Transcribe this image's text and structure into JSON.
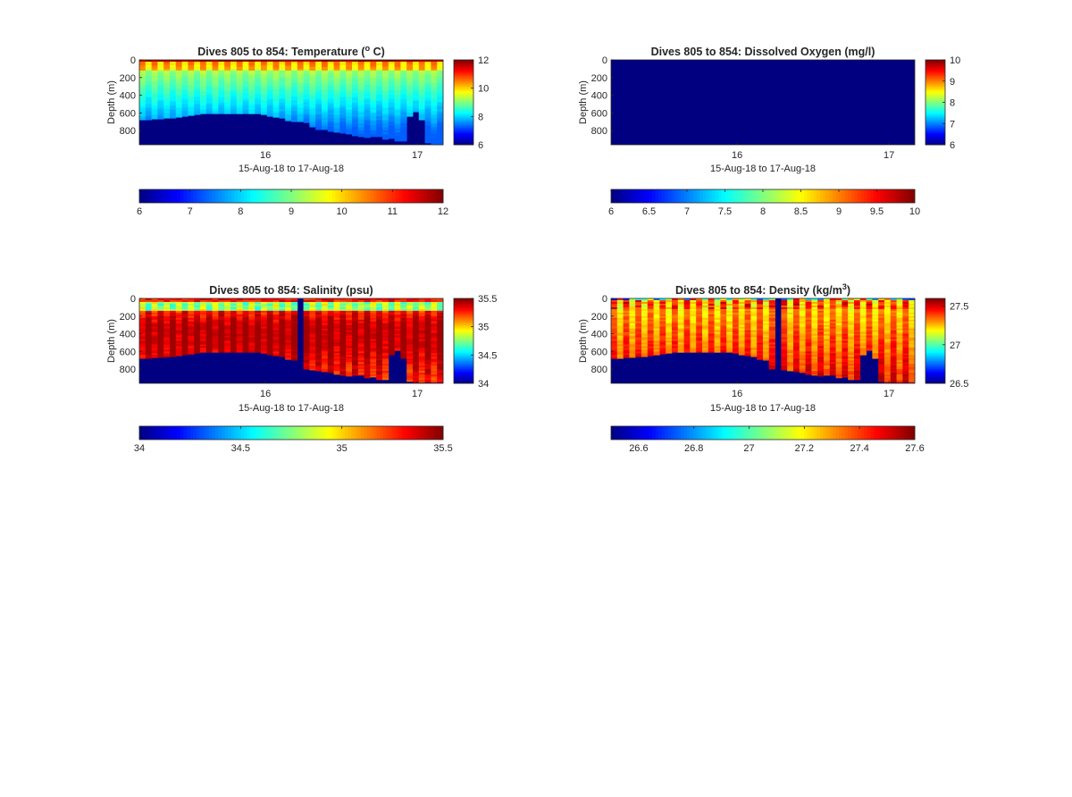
{
  "figure": {
    "background": "#ffffff"
  },
  "chart_data": [
    {
      "type": "heatmap",
      "id": "temp",
      "title": "Dives 805 to 854: Temperature (",
      "title_sup": "o",
      "title_end": " C)",
      "ylabel": "Depth (m)",
      "xlabel": "15-Aug-18 to 17-Aug-18",
      "y_reversed": true,
      "ylim": [
        0,
        960
      ],
      "yticks": [
        0,
        200,
        400,
        600,
        800
      ],
      "xlim": [
        15.17,
        17.17
      ],
      "xticks": [
        16,
        17
      ],
      "n_profiles": 50,
      "colormap": "jet",
      "clim": [
        6,
        12
      ],
      "cb_right_ticks": [
        6,
        8,
        10,
        12
      ],
      "cb_bottom_ticks": [
        6,
        7,
        8,
        9,
        10,
        11,
        12
      ],
      "profile_max_depth": [
        680,
        680,
        670,
        670,
        660,
        660,
        650,
        640,
        630,
        620,
        610,
        610,
        610,
        610,
        610,
        610,
        610,
        610,
        610,
        610,
        620,
        640,
        650,
        660,
        690,
        700,
        700,
        710,
        760,
        790,
        790,
        810,
        820,
        830,
        840,
        860,
        870,
        880,
        870,
        870,
        900,
        890,
        920,
        920,
        640,
        590,
        680,
        940,
        960,
        960
      ],
      "field": "temperature"
    },
    {
      "type": "heatmap",
      "id": "oxy",
      "title": "Dives 805 to 854: Dissolved Oxygen (mg/l)",
      "ylabel": "Depth (m)",
      "xlabel": "15-Aug-18 to 17-Aug-18",
      "y_reversed": true,
      "ylim": [
        0,
        960
      ],
      "yticks": [
        0,
        200,
        400,
        600,
        800
      ],
      "xlim": [
        15.17,
        17.17
      ],
      "xticks": [
        16,
        17
      ],
      "n_profiles": 50,
      "colormap": "jet",
      "clim": [
        6,
        10
      ],
      "cb_right_ticks": [
        6,
        7,
        8,
        9,
        10
      ],
      "cb_bottom_ticks": [
        6,
        6.5,
        7,
        7.5,
        8,
        8.5,
        9,
        9.5,
        10
      ],
      "profile_max_depth": [],
      "field": "uniform_min"
    },
    {
      "type": "heatmap",
      "id": "sal",
      "title": "Dives 805 to 854: Salinity (psu)",
      "ylabel": "Depth (m)",
      "xlabel": "15-Aug-18 to 17-Aug-18",
      "y_reversed": true,
      "ylim": [
        0,
        960
      ],
      "yticks": [
        0,
        200,
        400,
        600,
        800
      ],
      "xlim": [
        15.17,
        17.17
      ],
      "xticks": [
        16,
        17
      ],
      "n_profiles": 50,
      "colormap": "jet",
      "clim": [
        34,
        35.5
      ],
      "cb_right_ticks": [
        34,
        34.5,
        35,
        35.5
      ],
      "cb_bottom_ticks": [
        34,
        34.5,
        35,
        35.5
      ],
      "profile_max_depth": [
        680,
        680,
        670,
        670,
        660,
        660,
        650,
        640,
        630,
        620,
        610,
        610,
        610,
        610,
        610,
        610,
        610,
        610,
        610,
        610,
        620,
        640,
        650,
        660,
        690,
        700,
        0,
        800,
        810,
        820,
        830,
        840,
        860,
        870,
        880,
        870,
        870,
        900,
        890,
        920,
        920,
        640,
        590,
        680,
        940,
        950,
        950,
        950,
        950,
        950
      ],
      "field": "salinity"
    },
    {
      "type": "heatmap",
      "id": "dens",
      "title": "Dives 805 to 854: Density (kg/m",
      "title_sup": "3",
      "title_end": ")",
      "ylabel": "Depth (m)",
      "xlabel": "15-Aug-18 to 17-Aug-18",
      "y_reversed": true,
      "ylim": [
        0,
        960
      ],
      "yticks": [
        0,
        200,
        400,
        600,
        800
      ],
      "xlim": [
        15.17,
        17.17
      ],
      "xticks": [
        16,
        17
      ],
      "n_profiles": 50,
      "colormap": "jet",
      "clim": [
        26.5,
        27.6
      ],
      "cb_right_ticks": [
        26.5,
        27,
        27.5
      ],
      "cb_bottom_ticks": [
        26.6,
        26.8,
        27,
        27.2,
        27.4,
        27.6
      ],
      "profile_max_depth": [
        680,
        680,
        670,
        670,
        660,
        660,
        650,
        640,
        630,
        620,
        610,
        610,
        610,
        610,
        610,
        610,
        610,
        610,
        610,
        610,
        620,
        640,
        650,
        660,
        690,
        700,
        800,
        0,
        810,
        820,
        830,
        840,
        860,
        870,
        880,
        870,
        870,
        900,
        890,
        920,
        920,
        640,
        590,
        680,
        940,
        950,
        950,
        950,
        950,
        950
      ],
      "field": "density"
    }
  ]
}
